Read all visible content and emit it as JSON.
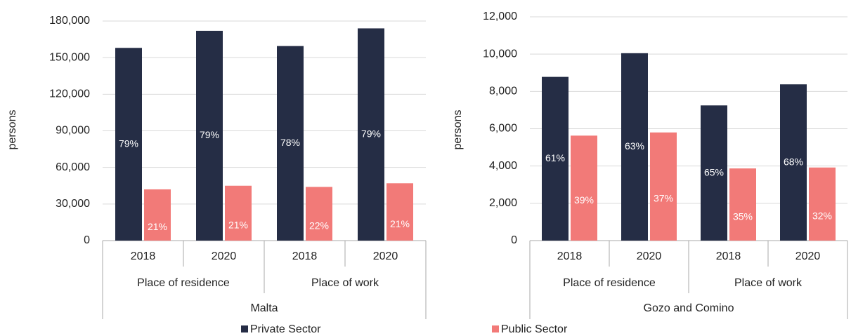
{
  "chart_data": [
    {
      "type": "bar",
      "y_label": "persons",
      "region": "Malta",
      "groups": [
        "Place of residence",
        "Place of work"
      ],
      "categories": [
        "2018",
        "2020",
        "2018",
        "2020"
      ],
      "ylim": [
        0,
        180000
      ],
      "yticks": [
        0,
        {
          "value": 30000,
          "label": "30,000"
        },
        {
          "value": 60000,
          "label": "60,000"
        },
        {
          "value": 90000,
          "label": "90,000"
        },
        {
          "value": 120000,
          "label": "120,000"
        },
        {
          "value": 150000,
          "label": "150,000"
        },
        {
          "value": 180000,
          "label": "180,000"
        }
      ],
      "grid": true,
      "series": [
        {
          "name": "Private Sector",
          "color": "#252d45",
          "values": [
            158000,
            172000,
            159500,
            174000
          ],
          "share_labels": [
            "79%",
            "79%",
            "78%",
            "79%"
          ]
        },
        {
          "name": "Public Sector",
          "color": "#f27a78",
          "values": [
            42000,
            45000,
            44000,
            47000
          ],
          "share_labels": [
            "21%",
            "21%",
            "22%",
            "21%"
          ]
        }
      ]
    },
    {
      "type": "bar",
      "y_label": "persons",
      "region": "Gozo and Comino",
      "groups": [
        "Place of residence",
        "Place of work"
      ],
      "categories": [
        "2018",
        "2020",
        "2018",
        "2020"
      ],
      "ylim": [
        0,
        12000
      ],
      "yticks": [
        0,
        {
          "value": 2000,
          "label": "2,000"
        },
        {
          "value": 4000,
          "label": "4,000"
        },
        {
          "value": 6000,
          "label": "6,000"
        },
        {
          "value": 8000,
          "label": "8,000"
        },
        {
          "value": 10000,
          "label": "10,000"
        },
        {
          "value": 12000,
          "label": "12,000"
        }
      ],
      "grid": true,
      "series": [
        {
          "name": "Private Sector",
          "color": "#252d45",
          "values": [
            8780,
            10050,
            7250,
            8380
          ],
          "share_labels": [
            "61%",
            "63%",
            "65%",
            "68%"
          ]
        },
        {
          "name": "Public Sector",
          "color": "#f27a78",
          "values": [
            5630,
            5800,
            3870,
            3920
          ],
          "share_labels": [
            "39%",
            "37%",
            "35%",
            "32%"
          ]
        }
      ]
    }
  ]
}
